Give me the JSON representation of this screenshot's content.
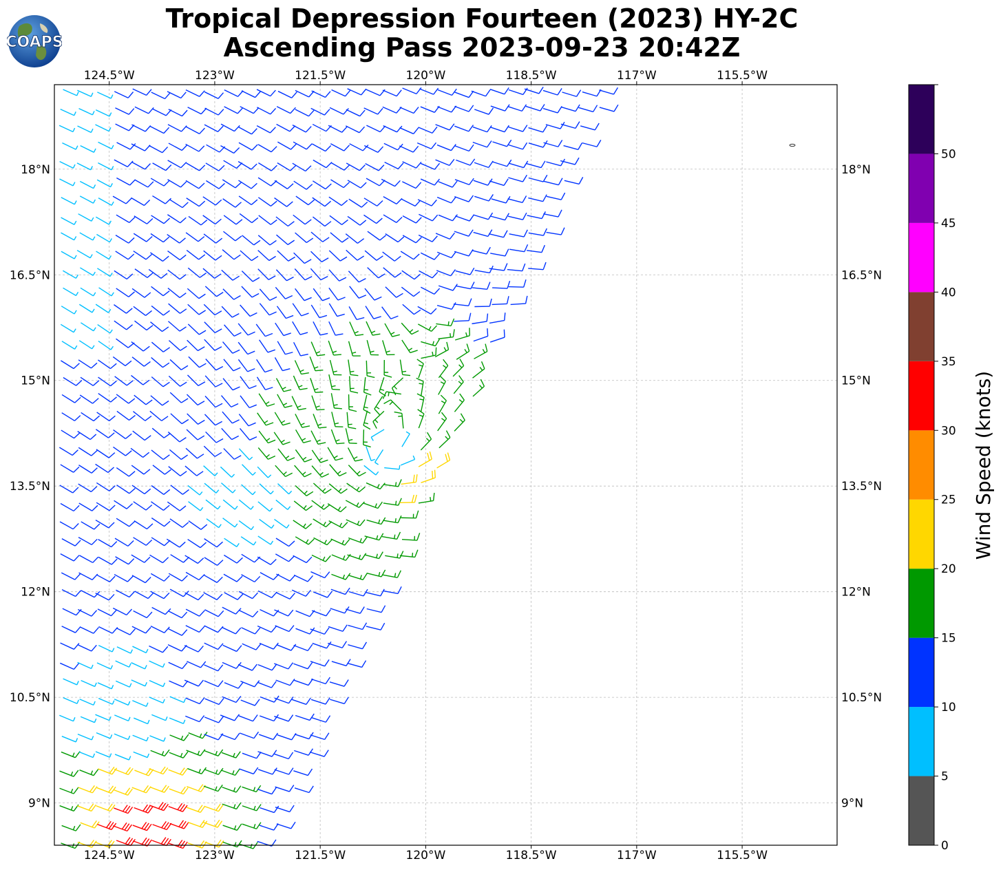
{
  "header": {
    "title_line1": "Tropical Depression Fourteen (2023) HY-2C",
    "title_line2": "Ascending Pass 2023-09-23 20:42Z",
    "logo_text": "COAPS"
  },
  "map": {
    "lon_ticks": [
      "124.5°W",
      "123°W",
      "121.5°W",
      "120°W",
      "118.5°W",
      "117°W",
      "115.5°W"
    ],
    "lon_values": [
      -124.5,
      -123,
      -121.5,
      -120,
      -118.5,
      -117,
      -115.5
    ],
    "lat_ticks": [
      "18°N",
      "16.5°N",
      "15°N",
      "13.5°N",
      "12°N",
      "10.5°N",
      "9°N"
    ],
    "lat_values": [
      18,
      16.5,
      15,
      13.5,
      12,
      10.5,
      9
    ],
    "lon_range": [
      -125.28,
      -114.15
    ],
    "lat_range": [
      8.4,
      19.2
    ],
    "storm_center": {
      "lon": -120.6,
      "lat": 14.0
    },
    "grid": true
  },
  "colorbar": {
    "label": "Wind Speed (knots)",
    "ticks": [
      "0",
      "5",
      "10",
      "15",
      "20",
      "25",
      "30",
      "35",
      "40",
      "45",
      "50"
    ],
    "bins": [
      {
        "min": 0,
        "max": 5,
        "color": "#555555"
      },
      {
        "min": 5,
        "max": 10,
        "color": "#00bfff"
      },
      {
        "min": 10,
        "max": 15,
        "color": "#0033ff"
      },
      {
        "min": 15,
        "max": 20,
        "color": "#009900"
      },
      {
        "min": 20,
        "max": 25,
        "color": "#ffd700"
      },
      {
        "min": 25,
        "max": 30,
        "color": "#ff8c00"
      },
      {
        "min": 30,
        "max": 35,
        "color": "#ff0000"
      },
      {
        "min": 35,
        "max": 40,
        "color": "#804030"
      },
      {
        "min": 40,
        "max": 45,
        "color": "#ff00ff"
      },
      {
        "min": 45,
        "max": 50,
        "color": "#8000b0"
      },
      {
        "min": 50,
        "max": 55,
        "color": "#2d005a"
      }
    ]
  }
}
